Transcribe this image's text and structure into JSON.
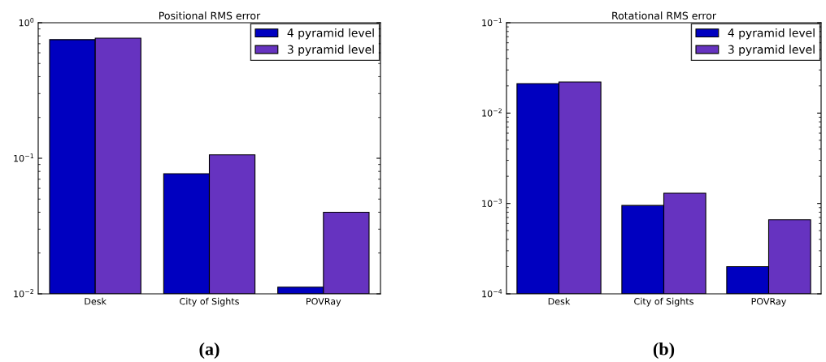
{
  "chart_data": [
    {
      "type": "bar",
      "title": "Positional RMS error",
      "categories": [
        "Desk",
        "City of Sights",
        "POVRay"
      ],
      "log": "y",
      "ylim": [
        0.01,
        1
      ],
      "yticks": [
        {
          "value": 0.01,
          "label": "10$^{−2}$"
        },
        {
          "value": 0.1,
          "label": "10$^{−1}$"
        },
        {
          "value": 1,
          "label": "10$^{0}$"
        }
      ],
      "legend": "top right",
      "grid": false,
      "annotations": [
        "(a)"
      ],
      "series": [
        {
          "name": "4 pyramid level",
          "color": "#0000c0",
          "values": [
            0.75,
            0.077,
            0.0112
          ]
        },
        {
          "name": "3 pyramid level",
          "color": "#6633c0",
          "values": [
            0.77,
            0.106,
            0.04
          ]
        }
      ]
    },
    {
      "type": "bar",
      "title": "Rotational RMS error",
      "categories": [
        "Desk",
        "City of Sights",
        "POVRay"
      ],
      "log": "y",
      "ylim": [
        0.0001,
        0.1
      ],
      "yticks": [
        {
          "value": 0.0001,
          "label": "10$^{−4}$"
        },
        {
          "value": 0.001,
          "label": "10$^{−3}$"
        },
        {
          "value": 0.01,
          "label": "10$^{−2}$"
        },
        {
          "value": 0.1,
          "label": "10$^{−1}$"
        }
      ],
      "legend": "top right",
      "grid": false,
      "annotations": [
        "(b)"
      ],
      "series": [
        {
          "name": "4 pyramid level",
          "color": "#0000c0",
          "values": [
            0.0212,
            0.00095,
            0.0002
          ]
        },
        {
          "name": "3 pyramid level",
          "color": "#6633c0",
          "values": [
            0.0221,
            0.0013,
            0.00066
          ]
        }
      ]
    }
  ]
}
